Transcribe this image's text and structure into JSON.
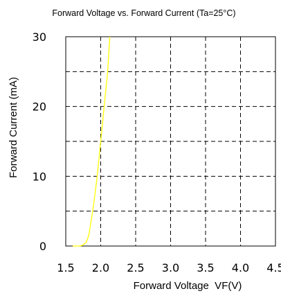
{
  "chart_data": {
    "type": "line",
    "title": "Forward Voltage vs. Forward Current (Ta=25°C)",
    "xlabel": "Forward Voltage  VF(V)",
    "ylabel": "Forward Current (mA)",
    "xlim": [
      1.5,
      4.5
    ],
    "ylim": [
      0,
      30
    ],
    "x_ticks": [
      "1.5",
      "2.0",
      "2.5",
      "3.0",
      "3.5",
      "4.0",
      "4.5"
    ],
    "y_ticks": [
      "0",
      "10",
      "20",
      "30"
    ],
    "grid": true,
    "series": [
      {
        "color": "#ffff00",
        "x": [
          1.6,
          1.7,
          1.74,
          1.79,
          1.83,
          1.9,
          1.95,
          2.0,
          2.05,
          2.1,
          2.13
        ],
        "y": [
          0,
          0,
          0.1,
          0.5,
          1.5,
          6,
          10,
          15,
          20,
          25,
          30
        ]
      }
    ]
  }
}
